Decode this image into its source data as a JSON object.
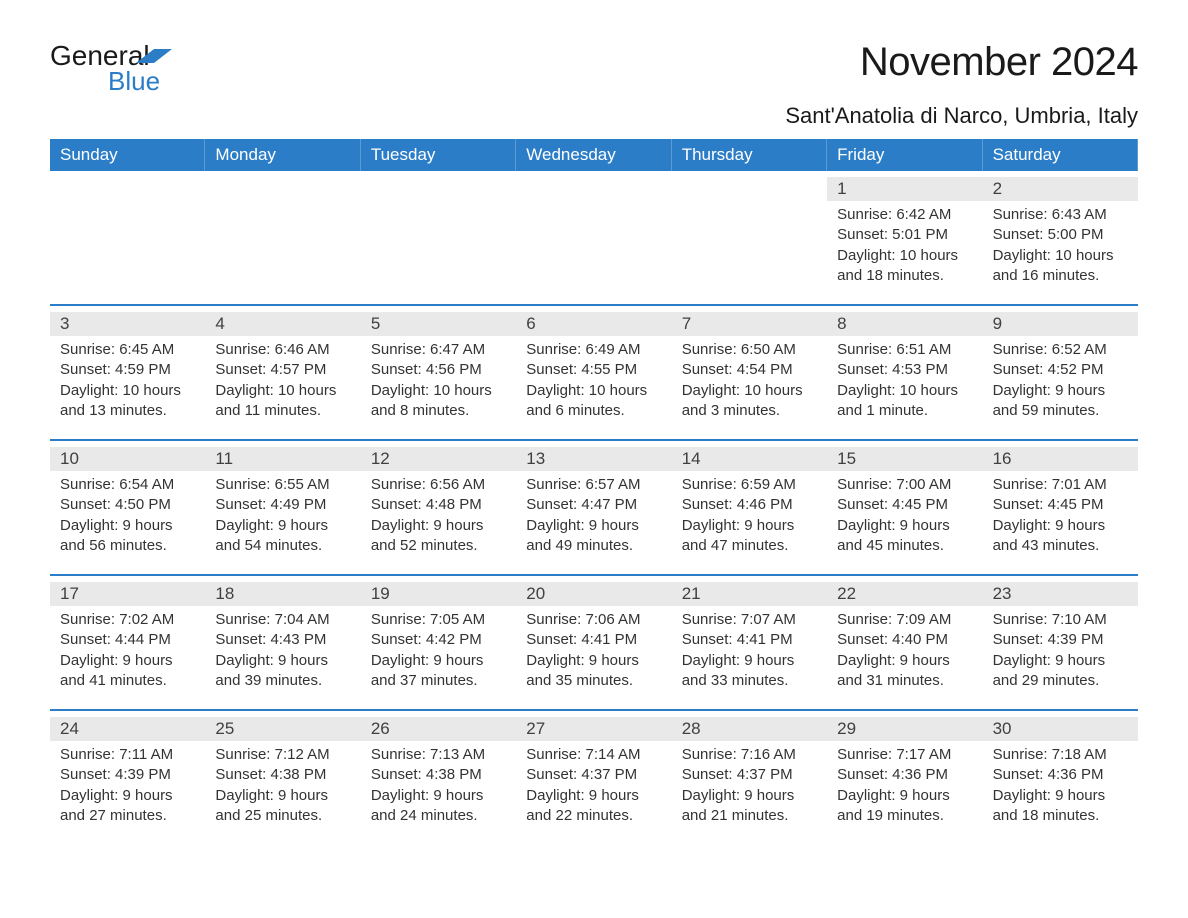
{
  "colors": {
    "header_blue": "#2b7dc7",
    "header_text": "#ffffff",
    "day_number_bg": "#e9e9e9",
    "body_text": "#333333",
    "title_text": "#1a1a1a",
    "divider": "#2b7dc7",
    "background": "#ffffff"
  },
  "typography": {
    "month_title_size": 40,
    "location_size": 22,
    "day_header_size": 17,
    "day_number_size": 17,
    "info_size": 15,
    "font_family": "Arial"
  },
  "logo": {
    "text_general": "General",
    "text_blue": "Blue",
    "shape_color": "#2b7dc7"
  },
  "title": "November 2024",
  "location": "Sant'Anatolia di Narco, Umbria, Italy",
  "day_headers": [
    "Sunday",
    "Monday",
    "Tuesday",
    "Wednesday",
    "Thursday",
    "Friday",
    "Saturday"
  ],
  "weeks": [
    [
      null,
      null,
      null,
      null,
      null,
      {
        "n": "1",
        "sr": "Sunrise: 6:42 AM",
        "ss": "Sunset: 5:01 PM",
        "d1": "Daylight: 10 hours",
        "d2": "and 18 minutes."
      },
      {
        "n": "2",
        "sr": "Sunrise: 6:43 AM",
        "ss": "Sunset: 5:00 PM",
        "d1": "Daylight: 10 hours",
        "d2": "and 16 minutes."
      }
    ],
    [
      {
        "n": "3",
        "sr": "Sunrise: 6:45 AM",
        "ss": "Sunset: 4:59 PM",
        "d1": "Daylight: 10 hours",
        "d2": "and 13 minutes."
      },
      {
        "n": "4",
        "sr": "Sunrise: 6:46 AM",
        "ss": "Sunset: 4:57 PM",
        "d1": "Daylight: 10 hours",
        "d2": "and 11 minutes."
      },
      {
        "n": "5",
        "sr": "Sunrise: 6:47 AM",
        "ss": "Sunset: 4:56 PM",
        "d1": "Daylight: 10 hours",
        "d2": "and 8 minutes."
      },
      {
        "n": "6",
        "sr": "Sunrise: 6:49 AM",
        "ss": "Sunset: 4:55 PM",
        "d1": "Daylight: 10 hours",
        "d2": "and 6 minutes."
      },
      {
        "n": "7",
        "sr": "Sunrise: 6:50 AM",
        "ss": "Sunset: 4:54 PM",
        "d1": "Daylight: 10 hours",
        "d2": "and 3 minutes."
      },
      {
        "n": "8",
        "sr": "Sunrise: 6:51 AM",
        "ss": "Sunset: 4:53 PM",
        "d1": "Daylight: 10 hours",
        "d2": "and 1 minute."
      },
      {
        "n": "9",
        "sr": "Sunrise: 6:52 AM",
        "ss": "Sunset: 4:52 PM",
        "d1": "Daylight: 9 hours",
        "d2": "and 59 minutes."
      }
    ],
    [
      {
        "n": "10",
        "sr": "Sunrise: 6:54 AM",
        "ss": "Sunset: 4:50 PM",
        "d1": "Daylight: 9 hours",
        "d2": "and 56 minutes."
      },
      {
        "n": "11",
        "sr": "Sunrise: 6:55 AM",
        "ss": "Sunset: 4:49 PM",
        "d1": "Daylight: 9 hours",
        "d2": "and 54 minutes."
      },
      {
        "n": "12",
        "sr": "Sunrise: 6:56 AM",
        "ss": "Sunset: 4:48 PM",
        "d1": "Daylight: 9 hours",
        "d2": "and 52 minutes."
      },
      {
        "n": "13",
        "sr": "Sunrise: 6:57 AM",
        "ss": "Sunset: 4:47 PM",
        "d1": "Daylight: 9 hours",
        "d2": "and 49 minutes."
      },
      {
        "n": "14",
        "sr": "Sunrise: 6:59 AM",
        "ss": "Sunset: 4:46 PM",
        "d1": "Daylight: 9 hours",
        "d2": "and 47 minutes."
      },
      {
        "n": "15",
        "sr": "Sunrise: 7:00 AM",
        "ss": "Sunset: 4:45 PM",
        "d1": "Daylight: 9 hours",
        "d2": "and 45 minutes."
      },
      {
        "n": "16",
        "sr": "Sunrise: 7:01 AM",
        "ss": "Sunset: 4:45 PM",
        "d1": "Daylight: 9 hours",
        "d2": "and 43 minutes."
      }
    ],
    [
      {
        "n": "17",
        "sr": "Sunrise: 7:02 AM",
        "ss": "Sunset: 4:44 PM",
        "d1": "Daylight: 9 hours",
        "d2": "and 41 minutes."
      },
      {
        "n": "18",
        "sr": "Sunrise: 7:04 AM",
        "ss": "Sunset: 4:43 PM",
        "d1": "Daylight: 9 hours",
        "d2": "and 39 minutes."
      },
      {
        "n": "19",
        "sr": "Sunrise: 7:05 AM",
        "ss": "Sunset: 4:42 PM",
        "d1": "Daylight: 9 hours",
        "d2": "and 37 minutes."
      },
      {
        "n": "20",
        "sr": "Sunrise: 7:06 AM",
        "ss": "Sunset: 4:41 PM",
        "d1": "Daylight: 9 hours",
        "d2": "and 35 minutes."
      },
      {
        "n": "21",
        "sr": "Sunrise: 7:07 AM",
        "ss": "Sunset: 4:41 PM",
        "d1": "Daylight: 9 hours",
        "d2": "and 33 minutes."
      },
      {
        "n": "22",
        "sr": "Sunrise: 7:09 AM",
        "ss": "Sunset: 4:40 PM",
        "d1": "Daylight: 9 hours",
        "d2": "and 31 minutes."
      },
      {
        "n": "23",
        "sr": "Sunrise: 7:10 AM",
        "ss": "Sunset: 4:39 PM",
        "d1": "Daylight: 9 hours",
        "d2": "and 29 minutes."
      }
    ],
    [
      {
        "n": "24",
        "sr": "Sunrise: 7:11 AM",
        "ss": "Sunset: 4:39 PM",
        "d1": "Daylight: 9 hours",
        "d2": "and 27 minutes."
      },
      {
        "n": "25",
        "sr": "Sunrise: 7:12 AM",
        "ss": "Sunset: 4:38 PM",
        "d1": "Daylight: 9 hours",
        "d2": "and 25 minutes."
      },
      {
        "n": "26",
        "sr": "Sunrise: 7:13 AM",
        "ss": "Sunset: 4:38 PM",
        "d1": "Daylight: 9 hours",
        "d2": "and 24 minutes."
      },
      {
        "n": "27",
        "sr": "Sunrise: 7:14 AM",
        "ss": "Sunset: 4:37 PM",
        "d1": "Daylight: 9 hours",
        "d2": "and 22 minutes."
      },
      {
        "n": "28",
        "sr": "Sunrise: 7:16 AM",
        "ss": "Sunset: 4:37 PM",
        "d1": "Daylight: 9 hours",
        "d2": "and 21 minutes."
      },
      {
        "n": "29",
        "sr": "Sunrise: 7:17 AM",
        "ss": "Sunset: 4:36 PM",
        "d1": "Daylight: 9 hours",
        "d2": "and 19 minutes."
      },
      {
        "n": "30",
        "sr": "Sunrise: 7:18 AM",
        "ss": "Sunset: 4:36 PM",
        "d1": "Daylight: 9 hours",
        "d2": "and 18 minutes."
      }
    ]
  ]
}
